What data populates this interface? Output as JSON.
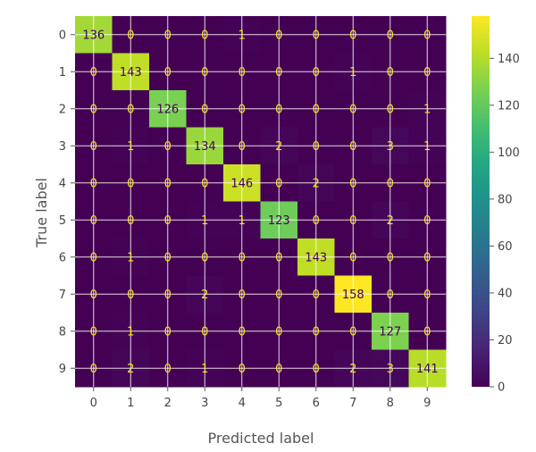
{
  "chart_data": {
    "type": "heatmap",
    "title": "",
    "xlabel": "Predicted label",
    "ylabel": "True label",
    "x_categories": [
      "0",
      "1",
      "2",
      "3",
      "4",
      "5",
      "6",
      "7",
      "8",
      "9"
    ],
    "y_categories": [
      "0",
      "1",
      "2",
      "3",
      "4",
      "5",
      "6",
      "7",
      "8",
      "9"
    ],
    "matrix": [
      [
        136,
        0,
        0,
        0,
        1,
        0,
        0,
        0,
        0,
        0
      ],
      [
        0,
        143,
        0,
        0,
        0,
        0,
        0,
        1,
        0,
        0
      ],
      [
        0,
        0,
        126,
        0,
        0,
        0,
        0,
        0,
        0,
        1
      ],
      [
        0,
        1,
        0,
        134,
        0,
        2,
        0,
        0,
        3,
        1
      ],
      [
        0,
        0,
        0,
        0,
        146,
        0,
        2,
        0,
        0,
        0
      ],
      [
        0,
        0,
        0,
        1,
        1,
        123,
        0,
        0,
        2,
        0
      ],
      [
        0,
        1,
        0,
        0,
        0,
        0,
        143,
        0,
        0,
        0
      ],
      [
        0,
        0,
        0,
        2,
        0,
        0,
        0,
        158,
        0,
        0
      ],
      [
        0,
        1,
        0,
        0,
        0,
        0,
        0,
        0,
        127,
        0
      ],
      [
        0,
        2,
        0,
        1,
        0,
        0,
        0,
        2,
        3,
        141
      ]
    ],
    "colormap": "viridis",
    "value_range": [
      0,
      158
    ],
    "colorbar_ticks": [
      "0",
      "20",
      "40",
      "60",
      "80",
      "100",
      "120",
      "140"
    ],
    "colorbar_tick_values": [
      0,
      20,
      40,
      60,
      80,
      100,
      120,
      140
    ],
    "grid": true,
    "colors": {
      "low": "#440154",
      "high": "#fde725",
      "low_text": "#fde725",
      "high_text": "#440154"
    }
  }
}
